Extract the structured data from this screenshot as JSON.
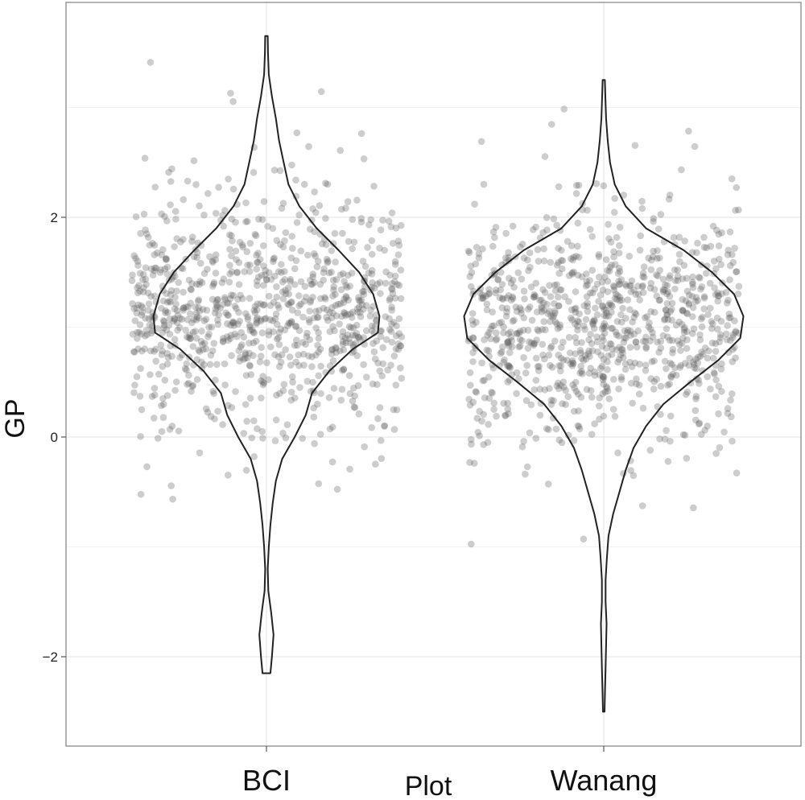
{
  "chart_data": {
    "type": "violin",
    "title": "",
    "xlabel": "Plot",
    "ylabel": "GP",
    "categories": [
      "BCI",
      "Wanang"
    ],
    "yticks": [
      -2,
      0,
      2
    ],
    "ytick_labels": [
      "−2",
      "0",
      "2"
    ],
    "ylim": [
      -2.8,
      3.95
    ],
    "grid": true,
    "jitter_points": "approximately 1000 semi-transparent grey points per plot, horizontally jittered across each category",
    "violins": [
      {
        "category": "BCI",
        "y_min": -2.15,
        "y_max": 3.65,
        "profile": [
          [
            -2.15,
            0.025
          ],
          [
            -2.0,
            0.035
          ],
          [
            -1.8,
            0.045
          ],
          [
            -1.6,
            0.03
          ],
          [
            -1.4,
            0.012
          ],
          [
            -1.2,
            0.008
          ],
          [
            -1.0,
            0.015
          ],
          [
            -0.8,
            0.025
          ],
          [
            -0.6,
            0.04
          ],
          [
            -0.4,
            0.06
          ],
          [
            -0.2,
            0.1
          ],
          [
            0.0,
            0.18
          ],
          [
            0.2,
            0.25
          ],
          [
            0.4,
            0.29
          ],
          [
            0.6,
            0.4
          ],
          [
            0.8,
            0.55
          ],
          [
            0.95,
            0.71
          ],
          [
            1.1,
            0.72
          ],
          [
            1.3,
            0.68
          ],
          [
            1.5,
            0.59
          ],
          [
            1.7,
            0.46
          ],
          [
            1.9,
            0.32
          ],
          [
            2.1,
            0.21
          ],
          [
            2.3,
            0.14
          ],
          [
            2.5,
            0.11
          ],
          [
            2.7,
            0.08
          ],
          [
            2.9,
            0.06
          ],
          [
            3.1,
            0.035
          ],
          [
            3.3,
            0.015
          ],
          [
            3.5,
            0.01
          ],
          [
            3.65,
            0.008
          ]
        ]
      },
      {
        "category": "Wanang",
        "y_min": -2.5,
        "y_max": 3.25,
        "profile": [
          [
            -2.5,
            0.005
          ],
          [
            -2.3,
            0.008
          ],
          [
            -2.1,
            0.012
          ],
          [
            -1.9,
            0.015
          ],
          [
            -1.7,
            0.018
          ],
          [
            -1.5,
            0.012
          ],
          [
            -1.3,
            0.012
          ],
          [
            -1.1,
            0.02
          ],
          [
            -0.9,
            0.03
          ],
          [
            -0.7,
            0.06
          ],
          [
            -0.5,
            0.1
          ],
          [
            -0.3,
            0.14
          ],
          [
            -0.1,
            0.19
          ],
          [
            0.1,
            0.27
          ],
          [
            0.3,
            0.38
          ],
          [
            0.5,
            0.55
          ],
          [
            0.7,
            0.73
          ],
          [
            0.9,
            0.87
          ],
          [
            1.1,
            0.89
          ],
          [
            1.3,
            0.83
          ],
          [
            1.5,
            0.69
          ],
          [
            1.7,
            0.51
          ],
          [
            1.9,
            0.27
          ],
          [
            2.1,
            0.14
          ],
          [
            2.3,
            0.07
          ],
          [
            2.5,
            0.04
          ],
          [
            2.7,
            0.025
          ],
          [
            2.9,
            0.015
          ],
          [
            3.1,
            0.01
          ],
          [
            3.25,
            0.007
          ]
        ]
      }
    ]
  }
}
